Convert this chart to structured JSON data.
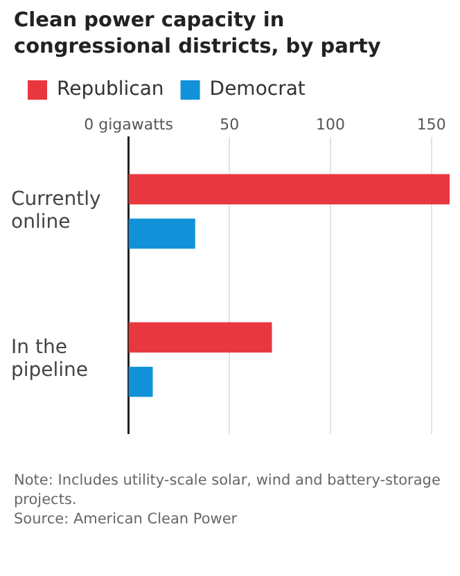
{
  "chart_data": {
    "type": "bar",
    "orientation": "horizontal",
    "title": "Clean power capacity in congressional districts, by party",
    "categories": [
      "Currently online",
      "In the pipeline"
    ],
    "series": [
      {
        "name": "Republican",
        "color": "#e8373e",
        "values": [
          159,
          71
        ]
      },
      {
        "name": "Democrat",
        "color": "#1192d8",
        "values": [
          33,
          12
        ]
      }
    ],
    "xlim": [
      0,
      160
    ],
    "xticks": [
      {
        "value": 0,
        "label": "0 gigawatts"
      },
      50,
      100,
      150
    ],
    "grid": "x",
    "legend": "top left",
    "annotations": [
      "Note: Includes utility-scale solar, wind and battery-storage projects.",
      "Source: American Clean Power"
    ]
  }
}
